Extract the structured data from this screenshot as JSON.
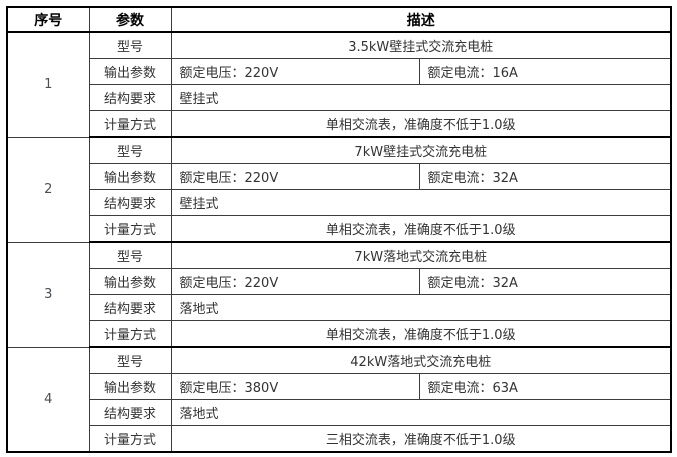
{
  "colors": {
    "border_thick": "#000000",
    "border_thin": "#3c3c3c",
    "text": "#333333",
    "background": "#ffffff"
  },
  "table": {
    "headers": {
      "serial": "序号",
      "param": "参数",
      "desc": "描述"
    },
    "sections": [
      {
        "no": "1",
        "model_label": "型号",
        "model": "3.5kW壁挂式交流充电桩",
        "output_label": "输出参数",
        "voltage": "额定电压：220V",
        "current": "额定电流：16A",
        "structure_label": "结构要求",
        "structure": "壁挂式",
        "metering_label": "计量方式",
        "metering": "单相交流表，准确度不低于1.0级"
      },
      {
        "no": "2",
        "model_label": "型号",
        "model": "7kW壁挂式交流充电桩",
        "output_label": "输出参数",
        "voltage": "额定电压：220V",
        "current": "额定电流：32A",
        "structure_label": "结构要求",
        "structure": "壁挂式",
        "metering_label": "计量方式",
        "metering": "单相交流表，准确度不低于1.0级"
      },
      {
        "no": "3",
        "model_label": "型号",
        "model": "7kW落地式交流充电桩",
        "output_label": "输出参数",
        "voltage": "额定电压：220V",
        "current": "额定电流：32A",
        "structure_label": "结构要求",
        "structure": "落地式",
        "metering_label": "计量方式",
        "metering": "单相交流表，准确度不低于1.0级"
      },
      {
        "no": "4",
        "model_label": "型号",
        "model": "42kW落地式交流充电桩",
        "output_label": "输出参数",
        "voltage": "额定电压：380V",
        "current": "额定电流：63A",
        "structure_label": "结构要求",
        "structure": "落地式",
        "metering_label": "计量方式",
        "metering": "三相交流表，准确度不低于1.0级"
      }
    ]
  }
}
